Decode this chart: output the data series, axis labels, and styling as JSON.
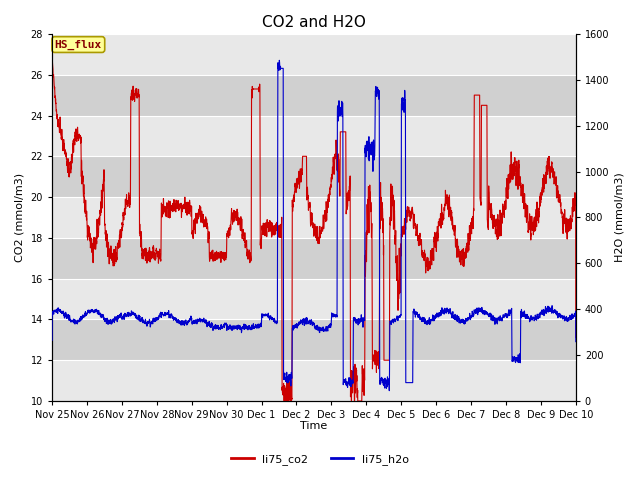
{
  "title": "CO2 and H2O",
  "xlabel": "Time",
  "ylabel_left": "CO2 (mmol/m3)",
  "ylabel_right": "H2O (mmol/m3)",
  "ylim_left": [
    10,
    28
  ],
  "ylim_right": [
    0,
    1600
  ],
  "yticks_left": [
    10,
    12,
    14,
    16,
    18,
    20,
    22,
    24,
    26,
    28
  ],
  "yticks_right": [
    0,
    200,
    400,
    600,
    800,
    1000,
    1200,
    1400,
    1600
  ],
  "band_colors": [
    "#e8e8e8",
    "#d0d0d0"
  ],
  "background_color": "#ffffff",
  "grid_color": "#ffffff",
  "co2_color": "#cc0000",
  "h2o_color": "#0000cc",
  "annotation_text": "HS_flux",
  "annotation_bg": "#ffff99",
  "annotation_border": "#aa9900",
  "title_fontsize": 11,
  "axis_fontsize": 8,
  "tick_fontsize": 7,
  "legend_fontsize": 8,
  "line_width": 0.8,
  "tick_hours": [
    0,
    24,
    48,
    72,
    96,
    120,
    144,
    168,
    192,
    216,
    240,
    264,
    288,
    312,
    336,
    360
  ],
  "tick_labels": [
    "Nov 25",
    "Nov 26",
    "Nov 27",
    "Nov 28",
    "Nov 29",
    "Nov 30",
    "Dec 1",
    "Dec 2",
    "Dec 3",
    "Dec 4",
    "Dec 5",
    "Dec 6",
    "Dec 7",
    "Dec 8",
    "Dec 9",
    "Dec 10"
  ]
}
